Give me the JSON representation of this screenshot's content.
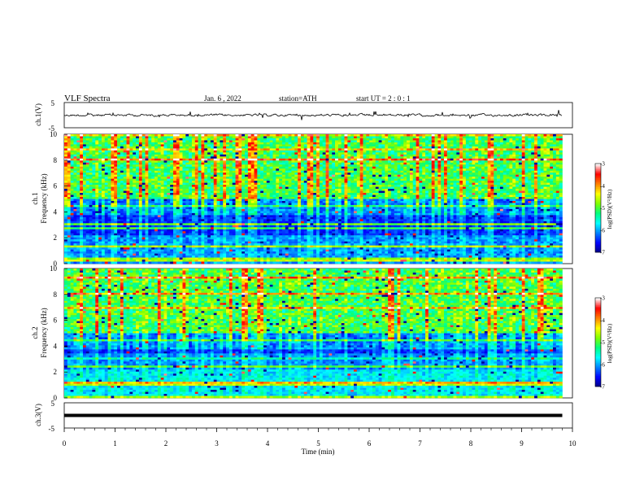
{
  "header": {
    "title": "VLF  Spectra",
    "date": "Jan.  6  , 2022",
    "station": "station=ATH",
    "start": "start  UT  =   2  : 0   : 1"
  },
  "chart_data": [
    {
      "type": "line",
      "name": "ch1-waveform",
      "ylabel": "ch.1(V)",
      "ylim": [
        -5,
        5
      ],
      "yticks": [
        5,
        -5
      ],
      "xlim": [
        0,
        10
      ]
    },
    {
      "type": "heatmap",
      "name": "ch1-spectrogram",
      "ylabel_top": "ch.1",
      "ylabel": "Frequency  (kHz)",
      "xlim": [
        0,
        9.8
      ],
      "ylim": [
        0,
        10
      ],
      "yticks": [
        "0",
        "2",
        "4",
        "6",
        "8",
        "10"
      ],
      "colorbar": {
        "label": "log(PSD)(V²/Hz)",
        "ticks": [
          "-3",
          "-4",
          "-5",
          "-6",
          "-7"
        ],
        "range": [
          -7,
          -3
        ]
      }
    },
    {
      "type": "heatmap",
      "name": "ch2-spectrogram",
      "ylabel_top": "ch.2",
      "ylabel": "Frequency  (kHz)",
      "xlim": [
        0,
        9.8
      ],
      "ylim": [
        0,
        10
      ],
      "yticks": [
        "0",
        "2",
        "4",
        "6",
        "8",
        "10"
      ],
      "colorbar": {
        "label": "log(PSD)(V²/Hz)",
        "ticks": [
          "-3",
          "-4",
          "-5",
          "-6",
          "-7"
        ],
        "range": [
          -7,
          -3
        ]
      }
    },
    {
      "type": "line",
      "name": "ch3-waveform",
      "ylabel": "ch.3(V)",
      "ylim": [
        -5,
        5
      ],
      "yticks": [
        5,
        -5
      ],
      "x": [
        0,
        9.8
      ],
      "y": [
        0,
        0
      ]
    }
  ],
  "xaxis": {
    "label": "Time  (min)",
    "ticks": [
      "0",
      "1",
      "2",
      "3",
      "4",
      "5",
      "6",
      "7",
      "8",
      "9",
      "10"
    ]
  },
  "colors": {
    "jet": [
      "#000080",
      "#0000ff",
      "#0080ff",
      "#00ffff",
      "#00ff80",
      "#80ff00",
      "#ffff00",
      "#ff8000",
      "#ff0000",
      "#ffffff"
    ]
  }
}
